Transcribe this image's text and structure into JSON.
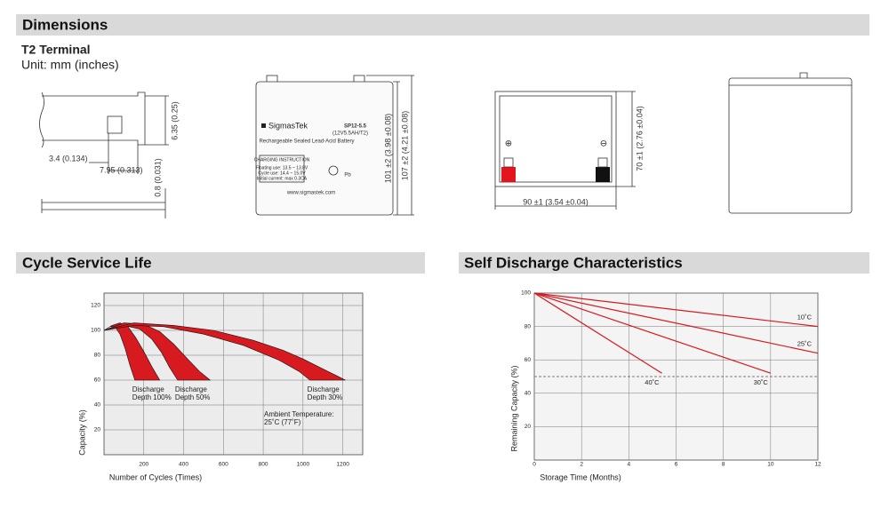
{
  "dimensions": {
    "title": "Dimensions",
    "terminal_title": "T2 Terminal",
    "unit": "Unit: mm (inches)",
    "terminal": {
      "height": "6.35 (0.25)",
      "offset": "3.4 (0.134)",
      "width": "7.95 (0.313)",
      "thickness": "0.8 (0.031)"
    },
    "front": {
      "brand": "SigmasTek",
      "model": "SP12-5.5",
      "spec": "(12V5.5AH/T2)",
      "description": "Rechargeable Sealed Lead-Acid Battery",
      "charging_title": "CHARGING INSTRUCTION",
      "charging_lines": [
        "Floating use: 13.5 ~ 13.8V",
        "Cycle use: 14.4 ~ 15.0V",
        "Initial current: max 0.3CA"
      ],
      "pb": "Pb",
      "website": "www.sigmastek.com",
      "height": "101 ±2 (3.98 ±0.08)",
      "total_height": "107 ±2 (4.21 ±0.08)"
    },
    "top": {
      "positive": "⊕",
      "negative": "⊖",
      "depth": "70 ±1 (2.76 ±0.04)",
      "length": "90 ±1 (3.54 ±0.04)"
    }
  },
  "chart_data": [
    {
      "type": "area",
      "title": "Cycle Service Life",
      "xlabel": "Number of Cycles (Times)",
      "ylabel": "Capacity (%)",
      "xlim": [
        0,
        1300
      ],
      "ylim": [
        0,
        130
      ],
      "xticks": [
        200,
        400,
        600,
        800,
        1000,
        1200
      ],
      "yticks": [
        20,
        40,
        60,
        80,
        100,
        120
      ],
      "grid": true,
      "annotations": [
        "Ambient Temperature:",
        "25˚C (77˚F)"
      ],
      "series": [
        {
          "label": [
            "Discharge",
            "Depth 100%"
          ],
          "color": "#d71920",
          "x": [
            0,
            40,
            80,
            120,
            160,
            200,
            240,
            280,
            155,
            130,
            105,
            80,
            55,
            30,
            0
          ],
          "values": [
            100,
            104,
            106,
            103,
            94,
            83,
            71,
            60,
            60,
            72,
            86,
            97,
            103,
            103,
            100
          ]
        },
        {
          "label": [
            "Discharge",
            "Depth 50%"
          ],
          "color": "#d71920",
          "x": [
            0,
            100,
            200,
            280,
            350,
            420,
            480,
            533,
            370,
            330,
            290,
            240,
            180,
            100,
            0
          ],
          "values": [
            100,
            106,
            105,
            99,
            89,
            77,
            67,
            60,
            60,
            70,
            82,
            93,
            101,
            104,
            100
          ]
        },
        {
          "label": [
            "Discharge",
            "Depth 30%"
          ],
          "color": "#d71920",
          "x": [
            0,
            150,
            350,
            550,
            750,
            900,
            1000,
            1100,
            1213,
            1035,
            980,
            880,
            700,
            500,
            300,
            150,
            0
          ],
          "values": [
            100,
            106,
            104,
            100,
            92,
            84,
            77,
            69,
            60,
            60,
            67,
            76,
            88,
            97,
            103,
            104,
            100
          ]
        }
      ]
    },
    {
      "type": "line",
      "title": "Self Discharge Characteristics",
      "xlabel": "Storage Time (Months)",
      "ylabel": "Remaining Capacity (%)",
      "xlim": [
        0,
        12
      ],
      "ylim": [
        0,
        100
      ],
      "xticks": [
        0,
        2,
        4,
        6,
        8,
        10,
        12
      ],
      "yticks": [
        20,
        40,
        60,
        80,
        100
      ],
      "grid": true,
      "reference": 50,
      "series": [
        {
          "name": "10˚C",
          "color": "#d71920",
          "x": [
            0,
            12
          ],
          "values": [
            100,
            80
          ]
        },
        {
          "name": "25˚C",
          "color": "#d71920",
          "x": [
            0,
            12
          ],
          "values": [
            100,
            64
          ]
        },
        {
          "name": "30˚C",
          "color": "#d71920",
          "x": [
            0,
            10
          ],
          "values": [
            100,
            52
          ]
        },
        {
          "name": "40˚C",
          "color": "#d71920",
          "x": [
            0,
            5.4
          ],
          "values": [
            100,
            52
          ]
        }
      ]
    }
  ]
}
